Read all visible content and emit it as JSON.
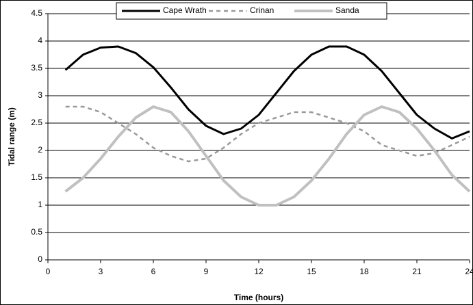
{
  "chart_data": {
    "type": "line",
    "x_label": "Time (hours)",
    "y_label": "Tidal range (m)",
    "x": [
      1,
      2,
      3,
      4,
      5,
      6,
      7,
      8,
      9,
      10,
      11,
      12,
      13,
      14,
      15,
      16,
      17,
      18,
      19,
      20,
      21,
      22,
      23,
      24
    ],
    "series": [
      {
        "name": "Cape Wrath",
        "color": "#000000",
        "dash": "solid",
        "width": 3,
        "values": [
          3.47,
          3.75,
          3.88,
          3.9,
          3.78,
          3.52,
          3.15,
          2.75,
          2.45,
          2.3,
          2.4,
          2.65,
          3.05,
          3.45,
          3.75,
          3.9,
          3.9,
          3.75,
          3.45,
          3.05,
          2.65,
          2.4,
          2.22,
          2.35
        ]
      },
      {
        "name": "Crinan",
        "color": "#999999",
        "dash": "dashed",
        "width": 2.5,
        "values": [
          2.8,
          2.8,
          2.7,
          2.5,
          2.3,
          2.05,
          1.9,
          1.8,
          1.85,
          2.05,
          2.3,
          2.5,
          2.6,
          2.7,
          2.7,
          2.6,
          2.5,
          2.35,
          2.1,
          2.0,
          1.9,
          1.95,
          2.1,
          2.25
        ]
      },
      {
        "name": "Sanda",
        "color": "#c0c0c0",
        "dash": "solid",
        "width": 4,
        "values": [
          1.25,
          1.5,
          1.85,
          2.25,
          2.6,
          2.8,
          2.7,
          2.35,
          1.9,
          1.45,
          1.15,
          1.0,
          1.0,
          1.15,
          1.45,
          1.85,
          2.3,
          2.65,
          2.8,
          2.7,
          2.4,
          2.0,
          1.55,
          1.25
        ]
      }
    ],
    "xlim": [
      0,
      24
    ],
    "xticks": [
      0,
      3,
      6,
      9,
      12,
      15,
      18,
      21,
      24
    ],
    "ylim": [
      0,
      4.5
    ],
    "yticks": [
      0,
      0.5,
      1,
      1.5,
      2,
      2.5,
      3,
      3.5,
      4,
      4.5
    ],
    "grid": true,
    "legend": "top"
  }
}
